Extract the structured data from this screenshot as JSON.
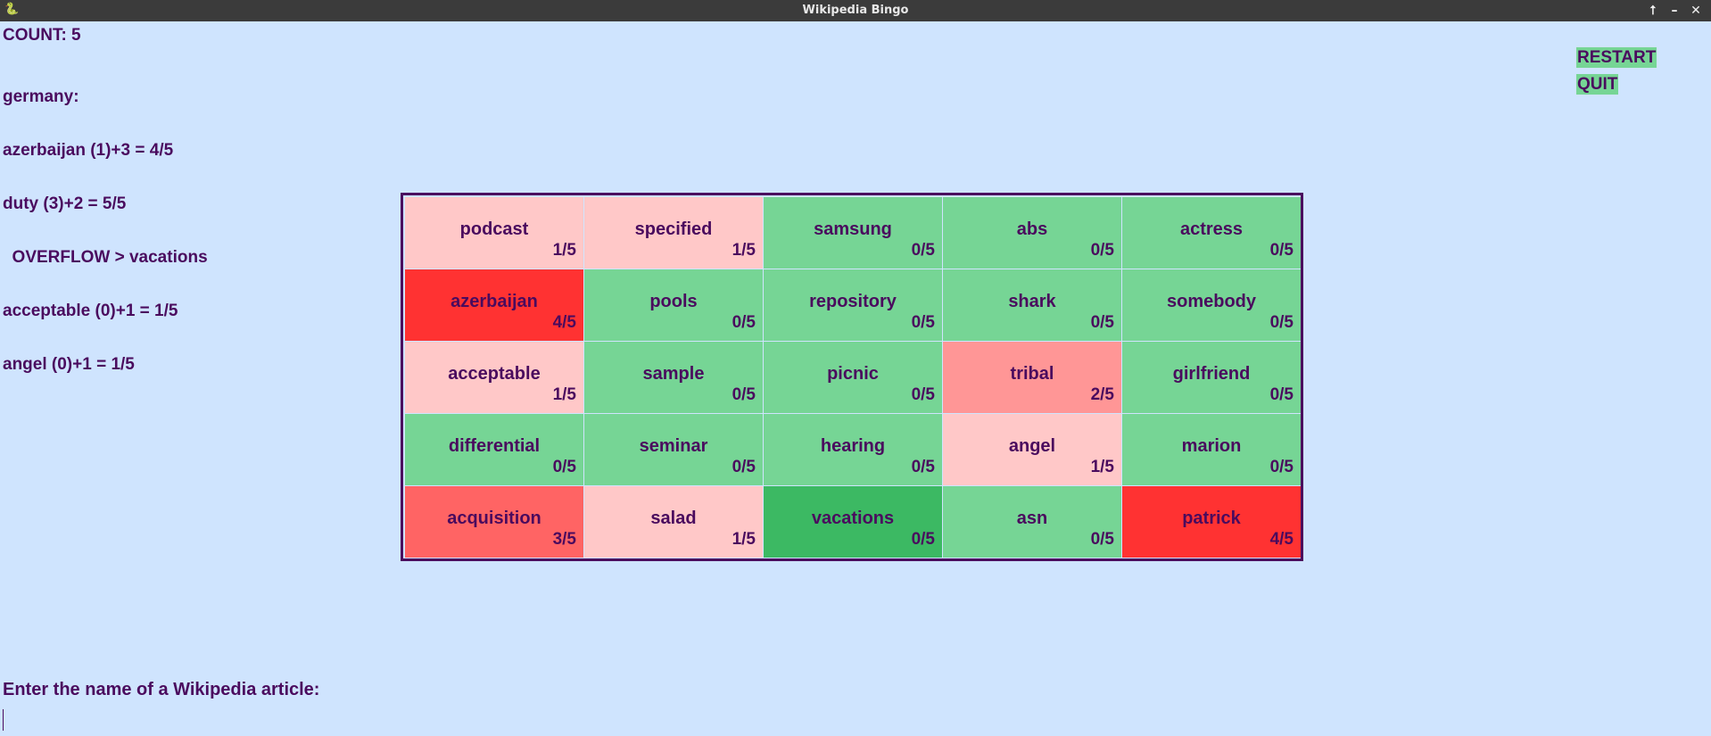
{
  "window": {
    "title": "Wikipedia Bingo",
    "icon": "pygame-snake-icon",
    "controls": [
      "arrow-up-icon",
      "minimize-icon",
      "close-icon"
    ]
  },
  "count": "COUNT: 5",
  "log": [
    "germany:",
    "azerbaijan (1)+3 = 4/5",
    "duty (3)+2 = 5/5",
    "  OVERFLOW > vacations",
    "acceptable (0)+1 = 1/5",
    "angel (0)+1 = 1/5"
  ],
  "buttons": {
    "restart": "RESTART",
    "quit": "QUIT"
  },
  "colors": {
    "score_0": "#76d595",
    "score_1": "#ffc8c8",
    "score_2": "#ff9696",
    "score_3": "#ff6464",
    "score_4": "#ff3232",
    "overflow": "#3cb963",
    "text": "#4a0b5e",
    "background": "#cfe4fe"
  },
  "board": [
    {
      "word": "podcast",
      "score": "1/5",
      "value": 1
    },
    {
      "word": "specified",
      "score": "1/5",
      "value": 1
    },
    {
      "word": "samsung",
      "score": "0/5",
      "value": 0
    },
    {
      "word": "abs",
      "score": "0/5",
      "value": 0
    },
    {
      "word": "actress",
      "score": "0/5",
      "value": 0
    },
    {
      "word": "azerbaijan",
      "score": "4/5",
      "value": 4
    },
    {
      "word": "pools",
      "score": "0/5",
      "value": 0
    },
    {
      "word": "repository",
      "score": "0/5",
      "value": 0
    },
    {
      "word": "shark",
      "score": "0/5",
      "value": 0
    },
    {
      "word": "somebody",
      "score": "0/5",
      "value": 0
    },
    {
      "word": "acceptable",
      "score": "1/5",
      "value": 1
    },
    {
      "word": "sample",
      "score": "0/5",
      "value": 0
    },
    {
      "word": "picnic",
      "score": "0/5",
      "value": 0
    },
    {
      "word": "tribal",
      "score": "2/5",
      "value": 2
    },
    {
      "word": "girlfriend",
      "score": "0/5",
      "value": 0
    },
    {
      "word": "differential",
      "score": "0/5",
      "value": 0
    },
    {
      "word": "seminar",
      "score": "0/5",
      "value": 0
    },
    {
      "word": "hearing",
      "score": "0/5",
      "value": 0
    },
    {
      "word": "angel",
      "score": "1/5",
      "value": 1
    },
    {
      "word": "marion",
      "score": "0/5",
      "value": 0
    },
    {
      "word": "acquisition",
      "score": "3/5",
      "value": 3
    },
    {
      "word": "salad",
      "score": "1/5",
      "value": 1
    },
    {
      "word": "vacations",
      "score": "0/5",
      "value": 0,
      "highlight": "overflow"
    },
    {
      "word": "asn",
      "score": "0/5",
      "value": 0
    },
    {
      "word": "patrick",
      "score": "4/5",
      "value": 4
    }
  ],
  "prompt": "Enter the name of a Wikipedia article:",
  "input": {
    "value": "",
    "placeholder": ""
  }
}
